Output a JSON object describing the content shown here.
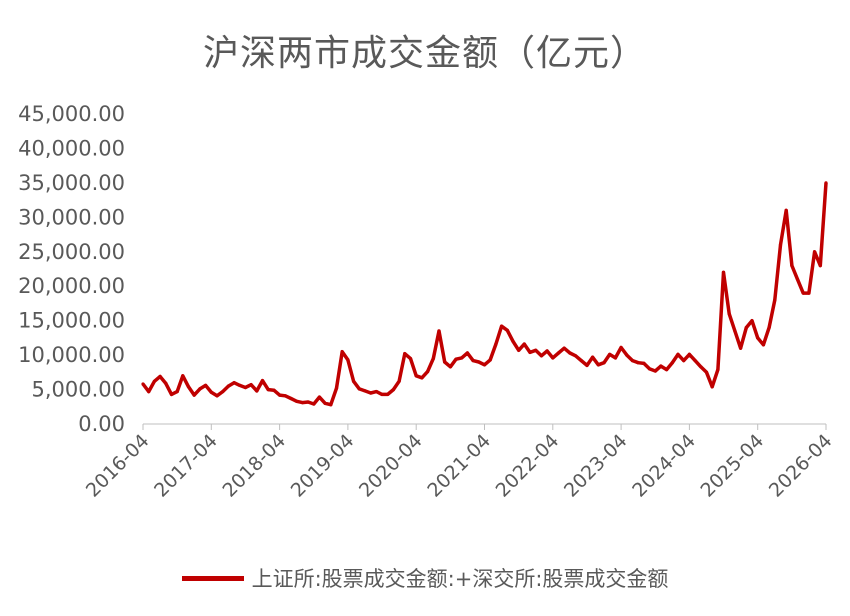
{
  "chart_data": {
    "type": "line",
    "title": "沪深两市成交金额（亿元）",
    "xlabel": "",
    "ylabel": "",
    "ylim": [
      0,
      45000
    ],
    "yticks": [
      "0.00",
      "5,000.00",
      "10,000.00",
      "15,000.00",
      "20,000.00",
      "25,000.00",
      "30,000.00",
      "35,000.00",
      "40,000.00",
      "45,000.00"
    ],
    "xticks": [
      "2016-04",
      "2017-04",
      "2018-04",
      "2019-04",
      "2020-04",
      "2021-04",
      "2022-04",
      "2023-04",
      "2024-04",
      "2025-04",
      "2026-04"
    ],
    "grid": false,
    "legend_position": "bottom",
    "series": [
      {
        "name": "上证所:股票成交金额:+深交所:股票成交金额",
        "color": "#C00000",
        "x": [
          "2016-04",
          "2016-05",
          "2016-06",
          "2016-07",
          "2016-08",
          "2016-09",
          "2016-10",
          "2016-11",
          "2016-12",
          "2017-01",
          "2017-02",
          "2017-03",
          "2017-04",
          "2017-05",
          "2017-06",
          "2017-07",
          "2017-08",
          "2017-09",
          "2017-10",
          "2017-11",
          "2017-12",
          "2018-01",
          "2018-02",
          "2018-03",
          "2018-04",
          "2018-05",
          "2018-06",
          "2018-07",
          "2018-08",
          "2018-09",
          "2018-10",
          "2018-11",
          "2018-12",
          "2019-01",
          "2019-02",
          "2019-03",
          "2019-04",
          "2019-05",
          "2019-06",
          "2019-07",
          "2019-08",
          "2019-09",
          "2019-10",
          "2019-11",
          "2019-12",
          "2020-01",
          "2020-02",
          "2020-03",
          "2020-04",
          "2020-05",
          "2020-06",
          "2020-07",
          "2020-08",
          "2020-09",
          "2020-10",
          "2020-11",
          "2020-12",
          "2021-01",
          "2021-02",
          "2021-03",
          "2021-04",
          "2021-05",
          "2021-06",
          "2021-07",
          "2021-08",
          "2021-09",
          "2021-10",
          "2021-11",
          "2021-12",
          "2022-01",
          "2022-02",
          "2022-03",
          "2022-04",
          "2022-05",
          "2022-06",
          "2022-07",
          "2022-08",
          "2022-09",
          "2022-10",
          "2022-11",
          "2022-12",
          "2023-01",
          "2023-02",
          "2023-03",
          "2023-04",
          "2023-05",
          "2023-06",
          "2023-07",
          "2023-08",
          "2023-09",
          "2023-10",
          "2023-11",
          "2023-12",
          "2024-01",
          "2024-02",
          "2024-03",
          "2024-04",
          "2024-05",
          "2024-06",
          "2024-07",
          "2024-08",
          "2024-09",
          "2024-10",
          "2024-11",
          "2024-12",
          "2025-01",
          "2025-02",
          "2025-03",
          "2025-04",
          "2025-05",
          "2025-06",
          "2025-07",
          "2025-08",
          "2025-09",
          "2025-10",
          "2025-11",
          "2025-12",
          "2026-01",
          "2026-02",
          "2026-03",
          "2026-04"
        ],
        "values": [
          5800,
          4700,
          6200,
          6900,
          5900,
          4300,
          4700,
          7000,
          5400,
          4200,
          5100,
          5600,
          4600,
          4100,
          4700,
          5500,
          6000,
          5600,
          5300,
          5700,
          4800,
          6300,
          5000,
          4900,
          4200,
          4100,
          3700,
          3300,
          3100,
          3200,
          2900,
          3900,
          3000,
          2800,
          5200,
          10500,
          9300,
          6200,
          5100,
          4800,
          4500,
          4700,
          4300,
          4300,
          5000,
          6200,
          10200,
          9500,
          7000,
          6700,
          7600,
          9500,
          13500,
          9000,
          8300,
          9400,
          9600,
          10300,
          9200,
          9000,
          8600,
          9300,
          11600,
          14200,
          13600,
          12000,
          10700,
          11600,
          10400,
          10700,
          9900,
          10600,
          9600,
          10300,
          11000,
          10300,
          9900,
          9200,
          8500,
          9700,
          8600,
          8900,
          10100,
          9600,
          11100,
          10000,
          9200,
          8900,
          8800,
          8000,
          7700,
          8400,
          7900,
          8900,
          10100,
          9200,
          10100,
          9200,
          8300,
          7500,
          5400,
          7900,
          22000,
          16000,
          13500,
          11000,
          14000,
          15000,
          12500,
          11500,
          14000,
          18000,
          26000,
          31000,
          23000,
          21000,
          19000,
          19000,
          25000,
          23000,
          35000
        ]
      }
    ]
  }
}
